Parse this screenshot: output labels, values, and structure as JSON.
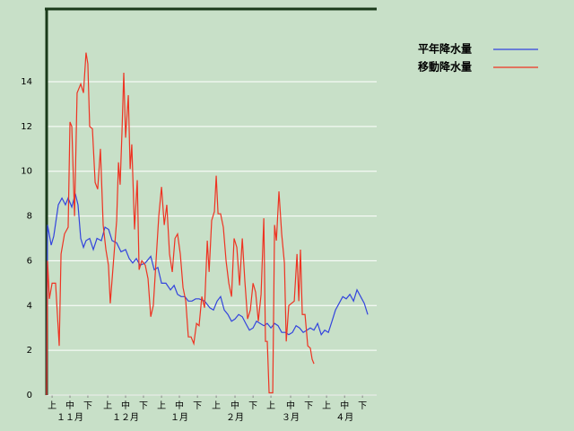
{
  "chart_data": {
    "type": "line",
    "xlim": [
      0,
      181
    ],
    "ylim": [
      0,
      17.25
    ],
    "yticks": [
      0,
      2,
      4,
      6,
      8,
      10,
      12,
      14
    ],
    "xticks": [
      {
        "value": 3,
        "label": "上"
      },
      {
        "value": 12.8,
        "label": "中"
      },
      {
        "value": 22.6,
        "label": "下"
      },
      {
        "value": 33.5,
        "label": "上"
      },
      {
        "value": 43.3,
        "label": "中"
      },
      {
        "value": 53.1,
        "label": "下"
      },
      {
        "value": 63,
        "label": "上"
      },
      {
        "value": 72.8,
        "label": "中"
      },
      {
        "value": 82.7,
        "label": "下"
      },
      {
        "value": 93,
        "label": "上"
      },
      {
        "value": 103.3,
        "label": "中"
      },
      {
        "value": 113.2,
        "label": "下"
      },
      {
        "value": 123,
        "label": "上"
      },
      {
        "value": 133.8,
        "label": "中"
      },
      {
        "value": 143.7,
        "label": "下"
      },
      {
        "value": 153.5,
        "label": "上"
      },
      {
        "value": 163.4,
        "label": "中"
      },
      {
        "value": 173.2,
        "label": "下"
      }
    ],
    "month_ticks": [
      {
        "value": 12.8,
        "label": "１１月"
      },
      {
        "value": 43.3,
        "label": "１２月"
      },
      {
        "value": 72.8,
        "label": "１月"
      },
      {
        "value": 103.3,
        "label": "２月"
      },
      {
        "value": 133.8,
        "label": "３月"
      },
      {
        "value": 163.4,
        "label": "４月"
      }
    ],
    "grid": true,
    "legend": "right",
    "series": [
      {
        "name": "平年降水量",
        "color": "#3344dd",
        "x": [
          0,
          0.5,
          2.5,
          3.9,
          6.4,
          8.4,
          10.3,
          11.8,
          13.8,
          15.7,
          17.2,
          18.7,
          20.2,
          21.6,
          23.6,
          25.6,
          27.6,
          30,
          32,
          34,
          35.9,
          38.4,
          40.8,
          43.3,
          45.3,
          47.2,
          49.2,
          51.2,
          54.1,
          57.1,
          59,
          61,
          63,
          65.4,
          67.9,
          69.9,
          71.8,
          73.8,
          75.8,
          77.7,
          79.7,
          81.7,
          83.6,
          86.6,
          89.5,
          91.5,
          93.5,
          95.4,
          97.4,
          99.4,
          101.4,
          103.3,
          105.3,
          107.3,
          109.2,
          111.2,
          113.2,
          115.1,
          117.1,
          119.1,
          121,
          123,
          125,
          126.9,
          128.9,
          130.9,
          132.8,
          134.8,
          136.8,
          138.7,
          140.7,
          142.7,
          144.6,
          146.6,
          148.6,
          150.6,
          152.5,
          154.5,
          156.5,
          158.4,
          160.4,
          162.4,
          164.3,
          166.3,
          168.3,
          170.2,
          172.2,
          174.2,
          176.1
        ],
        "values": [
          0,
          7.6,
          6.7,
          7.1,
          8.5,
          8.8,
          8.5,
          8.8,
          8.4,
          9.0,
          8.5,
          7.0,
          6.6,
          6.9,
          7.0,
          6.5,
          7.0,
          6.9,
          7.5,
          7.4,
          6.9,
          6.8,
          6.4,
          6.5,
          6.1,
          5.9,
          6.1,
          5.8,
          5.9,
          6.2,
          5.6,
          5.7,
          5.0,
          5.0,
          4.7,
          4.9,
          4.5,
          4.4,
          4.4,
          4.2,
          4.2,
          4.3,
          4.3,
          4.2,
          3.9,
          3.8,
          4.2,
          4.4,
          3.8,
          3.6,
          3.3,
          3.4,
          3.6,
          3.5,
          3.2,
          2.9,
          3.0,
          3.3,
          3.2,
          3.1,
          3.2,
          3.0,
          3.2,
          3.1,
          2.8,
          2.8,
          2.7,
          2.8,
          3.1,
          3.0,
          2.8,
          2.9,
          3.0,
          2.9,
          3.2,
          2.7,
          2.9,
          2.8,
          3.3,
          3.8,
          4.1,
          4.4,
          4.3,
          4.5,
          4.2,
          4.7,
          4.4,
          4.1,
          3.6
        ]
      },
      {
        "name": "移動降水量",
        "color": "#ee3322",
        "x": [
          0,
          0.5,
          1.5,
          3,
          4.9,
          6.9,
          7.9,
          9.8,
          11.8,
          12.8,
          13.8,
          15.3,
          16.7,
          18.7,
          20.2,
          21.6,
          22.6,
          23.6,
          25.1,
          26.6,
          28,
          29.5,
          31,
          32.5,
          33.9,
          34.9,
          36.4,
          38.4,
          39.4,
          40.3,
          41.3,
          42.3,
          43.3,
          44.8,
          45.8,
          46.7,
          48.2,
          49.7,
          50.7,
          52.2,
          54.1,
          55.6,
          57.1,
          58.5,
          60,
          61.5,
          63,
          64.5,
          65.9,
          67.4,
          68.9,
          70.4,
          71.8,
          73.3,
          74.8,
          76.3,
          77.7,
          79.2,
          80.7,
          82.2,
          83.6,
          85.1,
          86.6,
          88.1,
          89.1,
          90.5,
          92,
          93,
          94,
          95.4,
          96.9,
          98.4,
          99.9,
          101.4,
          102.8,
          104.3,
          105.8,
          107.3,
          108.7,
          110.2,
          111.7,
          113.2,
          114.6,
          116.1,
          117.6,
          119.1,
          120,
          121,
          122,
          124,
          125,
          126,
          127.4,
          128.9,
          130.4,
          131.4,
          132.8,
          134.3,
          135.8,
          137.3,
          138.3,
          139.2,
          140.2,
          141.7,
          143.2,
          144.6,
          145.6,
          146.6
        ],
        "values": [
          0,
          6.0,
          4.3,
          5.0,
          5.0,
          2.2,
          6.3,
          7.2,
          7.5,
          12.2,
          12.0,
          8.0,
          13.5,
          13.9,
          13.5,
          15.3,
          14.8,
          12.0,
          11.9,
          9.5,
          9.2,
          11.0,
          7.6,
          6.5,
          5.8,
          4.1,
          5.7,
          7.8,
          10.4,
          9.4,
          11.7,
          14.4,
          11.5,
          13.4,
          10.1,
          11.2,
          7.4,
          9.6,
          5.6,
          6.0,
          5.8,
          5.2,
          3.5,
          4.0,
          6.0,
          8.0,
          9.3,
          7.6,
          8.5,
          6.3,
          5.5,
          7.0,
          7.2,
          6.3,
          4.8,
          4.2,
          2.6,
          2.6,
          2.3,
          3.2,
          3.1,
          4.4,
          3.9,
          6.9,
          5.5,
          7.8,
          8.2,
          9.8,
          8.1,
          8.1,
          7.5,
          6.0,
          5.0,
          4.4,
          7.0,
          6.6,
          4.9,
          7.0,
          5.1,
          3.4,
          3.8,
          5.0,
          4.6,
          3.3,
          4.5,
          7.9,
          2.4,
          2.4,
          0.1,
          0.1,
          7.6,
          6.9,
          9.1,
          7.2,
          5.9,
          2.4,
          4.0,
          4.1,
          4.2,
          6.3,
          4.2,
          6.5,
          3.6,
          3.6,
          2.2,
          2.1,
          1.6,
          1.4
        ]
      }
    ]
  }
}
